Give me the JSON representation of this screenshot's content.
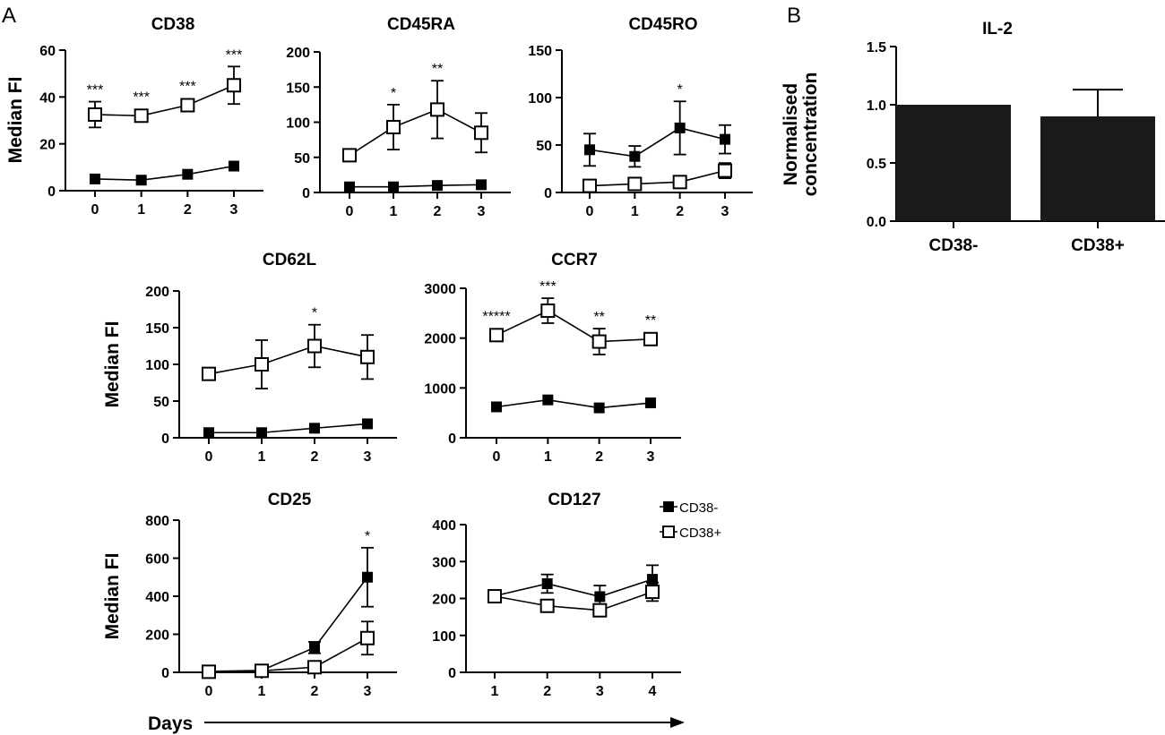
{
  "panel_labels": {
    "a": "A",
    "b": "B"
  },
  "legend": [
    {
      "label": "CD38-",
      "marker": "filled-square"
    },
    {
      "label": "CD38+",
      "marker": "open-square"
    }
  ],
  "days_label": "Days",
  "colors": {
    "ink": "#000000",
    "bar": "#1a1a1a",
    "open_fill": "#ffffff"
  },
  "chart_data": [
    {
      "id": "cd38",
      "type": "line",
      "title": "CD38",
      "ylabel": "Median FI",
      "x": [
        0,
        1,
        2,
        3
      ],
      "ylim": [
        0,
        60
      ],
      "yticks": [
        0,
        20,
        40,
        60
      ],
      "series": [
        {
          "name": "CD38-",
          "marker": "filled",
          "values": [
            5,
            4.5,
            7,
            10.5
          ],
          "err": [
            0,
            0,
            0,
            0
          ]
        },
        {
          "name": "CD38+",
          "marker": "open",
          "values": [
            32.5,
            32,
            36.5,
            45
          ],
          "err": [
            5.5,
            0,
            0,
            8
          ]
        }
      ],
      "annotations": [
        "***",
        "***",
        "***",
        "***"
      ]
    },
    {
      "id": "cd45ra",
      "type": "line",
      "title": "CD45RA",
      "ylabel": "",
      "x": [
        0,
        1,
        2,
        3
      ],
      "ylim": [
        0,
        200
      ],
      "yticks": [
        0,
        50,
        100,
        150,
        200
      ],
      "series": [
        {
          "name": "CD38-",
          "marker": "filled",
          "values": [
            8,
            8,
            10,
            11
          ],
          "err": [
            0,
            0,
            0,
            0
          ]
        },
        {
          "name": "CD38+",
          "marker": "open",
          "values": [
            53,
            93,
            118,
            85
          ],
          "err": [
            0,
            32,
            41,
            28
          ]
        }
      ],
      "annotations": [
        "",
        "*",
        "**",
        ""
      ]
    },
    {
      "id": "cd45ro",
      "type": "line",
      "title": "CD45RO",
      "ylabel": "",
      "x": [
        0,
        1,
        2,
        3
      ],
      "ylim": [
        0,
        150
      ],
      "yticks": [
        0,
        50,
        100,
        150
      ],
      "series": [
        {
          "name": "CD38-",
          "marker": "filled",
          "values": [
            45,
            38,
            68,
            56
          ],
          "err": [
            17,
            11,
            28,
            15
          ]
        },
        {
          "name": "CD38+",
          "marker": "open",
          "values": [
            7,
            9,
            11,
            23
          ],
          "err": [
            0,
            0,
            0,
            8
          ]
        }
      ],
      "annotations": [
        "",
        "",
        "*",
        ""
      ]
    },
    {
      "id": "cd62l",
      "type": "line",
      "title": "CD62L",
      "ylabel": "Median FI",
      "x": [
        0,
        1,
        2,
        3
      ],
      "ylim": [
        0,
        200
      ],
      "yticks": [
        0,
        50,
        100,
        150,
        200
      ],
      "series": [
        {
          "name": "CD38-",
          "marker": "filled",
          "values": [
            7,
            7,
            13,
            19
          ],
          "err": [
            0,
            0,
            0,
            0
          ]
        },
        {
          "name": "CD38+",
          "marker": "open",
          "values": [
            87,
            100,
            125,
            110
          ],
          "err": [
            0,
            33,
            29,
            30
          ]
        }
      ],
      "annotations": [
        "",
        "",
        "*",
        ""
      ]
    },
    {
      "id": "ccr7",
      "type": "line",
      "title": "CCR7",
      "ylabel": "",
      "x": [
        0,
        1,
        2,
        3
      ],
      "ylim": [
        0,
        3000
      ],
      "yticks": [
        0,
        1000,
        2000,
        3000
      ],
      "series": [
        {
          "name": "CD38-",
          "marker": "filled",
          "values": [
            620,
            760,
            600,
            700
          ],
          "err": [
            0,
            0,
            0,
            0
          ]
        },
        {
          "name": "CD38+",
          "marker": "open",
          "values": [
            2060,
            2550,
            1930,
            1980
          ],
          "err": [
            0,
            250,
            260,
            0
          ]
        }
      ],
      "annotations": [
        "*****",
        "***",
        "**",
        "**"
      ]
    },
    {
      "id": "cd25",
      "type": "line",
      "title": "CD25",
      "ylabel": "Median FI",
      "x": [
        0,
        1,
        2,
        3
      ],
      "ylim": [
        0,
        800
      ],
      "yticks": [
        0,
        200,
        400,
        600,
        800
      ],
      "series": [
        {
          "name": "CD38-",
          "marker": "filled",
          "values": [
            5,
            10,
            130,
            500
          ],
          "err": [
            0,
            0,
            30,
            155
          ]
        },
        {
          "name": "CD38+",
          "marker": "open",
          "values": [
            3,
            8,
            27,
            180
          ],
          "err": [
            0,
            0,
            0,
            87
          ]
        }
      ],
      "annotations": [
        "",
        "",
        "",
        "*"
      ]
    },
    {
      "id": "cd127",
      "type": "line",
      "title": "CD127",
      "ylabel": "",
      "x": [
        1,
        2,
        3,
        4
      ],
      "ylim": [
        0,
        400
      ],
      "yticks": [
        0,
        100,
        200,
        300,
        400
      ],
      "series": [
        {
          "name": "CD38-",
          "marker": "filled",
          "values": [
            207,
            240,
            205,
            252
          ],
          "err": [
            0,
            25,
            30,
            38
          ]
        },
        {
          "name": "CD38+",
          "marker": "open",
          "values": [
            206,
            180,
            168,
            218
          ],
          "err": [
            0,
            0,
            0,
            25
          ]
        }
      ],
      "annotations": [
        "",
        "",
        "",
        ""
      ]
    },
    {
      "id": "il2",
      "type": "bar",
      "title": "IL-2",
      "ylabel": "Normalised\nconcentration",
      "categories": [
        "CD38-",
        "CD38+"
      ],
      "values": [
        1.0,
        0.9
      ],
      "err": [
        0,
        0.23
      ],
      "ylim": [
        0,
        1.5
      ],
      "yticks": [
        0.0,
        0.5,
        1.0,
        1.5
      ]
    }
  ]
}
